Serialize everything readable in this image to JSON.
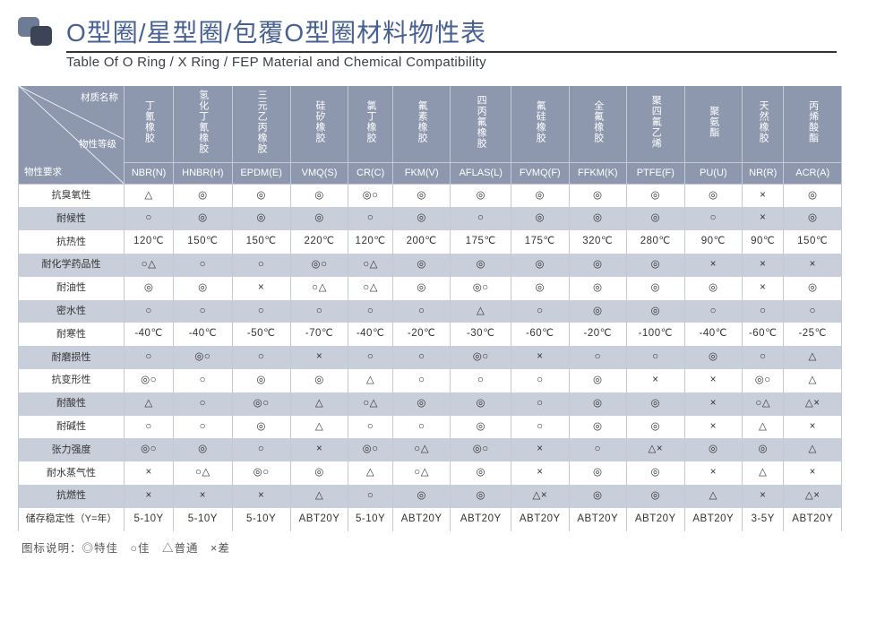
{
  "title_cn": "O型圈/星型圈/包覆O型圈材料物性表",
  "title_en": "Table Of O Ring / X Ring / FEP Material and Chemical Compatibility",
  "diag_labels": {
    "top": "材质名称",
    "mid": "物性等级",
    "bot": "物性要求"
  },
  "columns": [
    {
      "cn": "丁氰橡胶",
      "code": "NBR(N)"
    },
    {
      "cn": "氢化丁氰橡胶",
      "code": "HNBR(H)"
    },
    {
      "cn": "三元乙丙橡胶",
      "code": "EPDM(E)"
    },
    {
      "cn": "硅矽橡胶",
      "code": "VMQ(S)"
    },
    {
      "cn": "氯丁橡胶",
      "code": "CR(C)"
    },
    {
      "cn": "氟素橡胶",
      "code": "FKM(V)"
    },
    {
      "cn": "四丙氟橡胶",
      "code": "AFLAS(L)"
    },
    {
      "cn": "氟硅橡胶",
      "code": "FVMQ(F)"
    },
    {
      "cn": "全氟橡胶",
      "code": "FFKM(K)"
    },
    {
      "cn": "聚四氟乙烯",
      "code": "PTFE(F)"
    },
    {
      "cn": "聚氨酯",
      "code": "PU(U)"
    },
    {
      "cn": "天然橡胶",
      "code": "NR(R)"
    },
    {
      "cn": "丙烯酸酯",
      "code": "ACR(A)"
    }
  ],
  "rows": [
    {
      "label": "抗臭氧性",
      "vals": [
        "△",
        "◎",
        "◎",
        "◎",
        "◎○",
        "◎",
        "◎",
        "◎",
        "◎",
        "◎",
        "◎",
        "×",
        "◎"
      ]
    },
    {
      "label": "耐候性",
      "vals": [
        "○",
        "◎",
        "◎",
        "◎",
        "○",
        "◎",
        "○",
        "◎",
        "◎",
        "◎",
        "○",
        "×",
        "◎"
      ]
    },
    {
      "label": "抗热性",
      "vals": [
        "120℃",
        "150℃",
        "150℃",
        "220℃",
        "120℃",
        "200℃",
        "175℃",
        "175℃",
        "320℃",
        "280℃",
        "90℃",
        "90℃",
        "150℃"
      ]
    },
    {
      "label": "耐化学药品性",
      "vals": [
        "○△",
        "○",
        "○",
        "◎○",
        "○△",
        "◎",
        "◎",
        "◎",
        "◎",
        "◎",
        "×",
        "×",
        "×"
      ]
    },
    {
      "label": "耐油性",
      "vals": [
        "◎",
        "◎",
        "×",
        "○△",
        "○△",
        "◎",
        "◎○",
        "◎",
        "◎",
        "◎",
        "◎",
        "×",
        "◎"
      ]
    },
    {
      "label": "密水性",
      "vals": [
        "○",
        "○",
        "○",
        "○",
        "○",
        "○",
        "△",
        "○",
        "◎",
        "◎",
        "○",
        "○",
        "○"
      ]
    },
    {
      "label": "耐寒性",
      "vals": [
        "-40℃",
        "-40℃",
        "-50℃",
        "-70℃",
        "-40℃",
        "-20℃",
        "-30℃",
        "-60℃",
        "-20℃",
        "-100℃",
        "-40℃",
        "-60℃",
        "-25℃"
      ]
    },
    {
      "label": "耐磨损性",
      "vals": [
        "○",
        "◎○",
        "○",
        "×",
        "○",
        "○",
        "◎○",
        "×",
        "○",
        "○",
        "◎",
        "○",
        "△"
      ]
    },
    {
      "label": "抗变形性",
      "vals": [
        "◎○",
        "○",
        "◎",
        "◎",
        "△",
        "○",
        "○",
        "○",
        "◎",
        "×",
        "×",
        "◎○",
        "△"
      ]
    },
    {
      "label": "耐酸性",
      "vals": [
        "△",
        "○",
        "◎○",
        "△",
        "○△",
        "◎",
        "◎",
        "○",
        "◎",
        "◎",
        "×",
        "○△",
        "△×"
      ]
    },
    {
      "label": "耐碱性",
      "vals": [
        "○",
        "○",
        "◎",
        "△",
        "○",
        "○",
        "◎",
        "○",
        "◎",
        "◎",
        "×",
        "△",
        "×"
      ]
    },
    {
      "label": "张力强度",
      "vals": [
        "◎○",
        "◎",
        "○",
        "×",
        "◎○",
        "○△",
        "◎○",
        "×",
        "○",
        "△×",
        "◎",
        "◎",
        "△"
      ]
    },
    {
      "label": "耐水蒸气性",
      "vals": [
        "×",
        "○△",
        "◎○",
        "◎",
        "△",
        "○△",
        "◎",
        "×",
        "◎",
        "◎",
        "×",
        "△",
        "×"
      ]
    },
    {
      "label": "抗燃性",
      "vals": [
        "×",
        "×",
        "×",
        "△",
        "○",
        "◎",
        "◎",
        "△×",
        "◎",
        "◎",
        "△",
        "×",
        "△×"
      ]
    },
    {
      "label": "储存稳定性（Y=年）",
      "vals": [
        "5-10Y",
        "5-10Y",
        "5-10Y",
        "ABT20Y",
        "5-10Y",
        "ABT20Y",
        "ABT20Y",
        "ABT20Y",
        "ABT20Y",
        "ABT20Y",
        "ABT20Y",
        "3-5Y",
        "ABT20Y"
      ]
    }
  ],
  "legend": "图标说明：◎特佳　○佳　△普通　×差",
  "colors": {
    "accent": "#476094",
    "header_bg": "#8d97ad",
    "stripe_bg": "#c9cedb",
    "border": "#c5c9d3",
    "text": "#333333"
  }
}
